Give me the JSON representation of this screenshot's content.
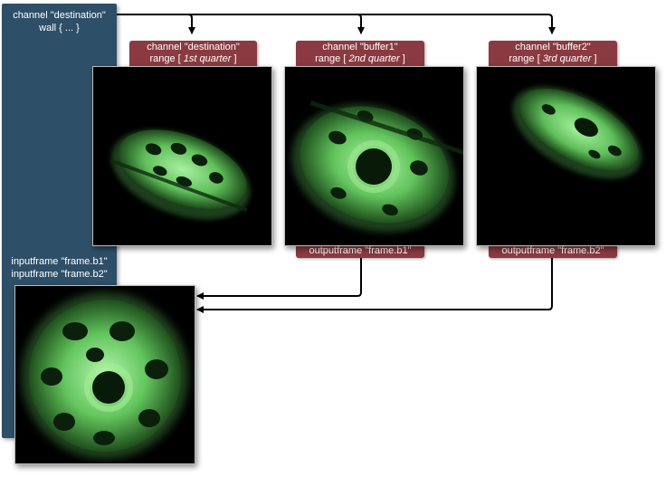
{
  "destination_panel": {
    "title_line1": "channel \"destination\"",
    "title_line2": "wall { ... }",
    "input_line1": "inputframe \"frame.b1\"",
    "input_line2": "inputframe \"frame.b2\""
  },
  "channels": [
    {
      "name_line": "channel \"destination\"",
      "range_prefix": "range [ ",
      "range_value": "1st quarter",
      "range_suffix": " ]",
      "output": ""
    },
    {
      "name_line": "channel \"buffer1\"",
      "range_prefix": "range [ ",
      "range_value": "2nd quarter",
      "range_suffix": " ]",
      "output": "outputframe \"frame.b1\""
    },
    {
      "name_line": "channel \"buffer2\"",
      "range_prefix": "range [ ",
      "range_value": "3rd quarter",
      "range_suffix": " ]",
      "output": "outputframe \"frame.b2\""
    }
  ],
  "colors": {
    "panel": "#2e4f68",
    "label": "#8a3a40",
    "render_green": "#6fcf6a",
    "render_bg": "#000000"
  }
}
